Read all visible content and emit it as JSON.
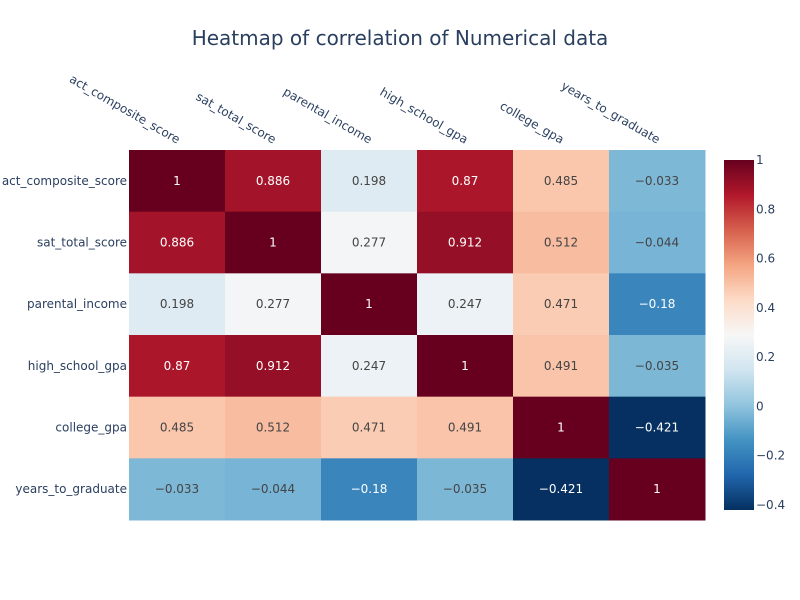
{
  "chart_data": {
    "type": "heatmap",
    "title": "Heatmap of correlation of Numerical data",
    "x_categories": [
      "act_composite_score",
      "sat_total_score",
      "parental_income",
      "high_school_gpa",
      "college_gpa",
      "years_to_graduate"
    ],
    "y_categories": [
      "act_composite_score",
      "sat_total_score",
      "parental_income",
      "high_school_gpa",
      "college_gpa",
      "years_to_graduate"
    ],
    "values": [
      [
        1,
        0.886,
        0.198,
        0.87,
        0.485,
        -0.033
      ],
      [
        0.886,
        1,
        0.277,
        0.912,
        0.512,
        -0.044
      ],
      [
        0.198,
        0.277,
        1,
        0.247,
        0.471,
        -0.18
      ],
      [
        0.87,
        0.912,
        0.247,
        1,
        0.491,
        -0.035
      ],
      [
        0.485,
        0.512,
        0.471,
        0.491,
        1,
        -0.421
      ],
      [
        -0.033,
        -0.044,
        -0.18,
        -0.035,
        -0.421,
        1
      ]
    ],
    "cell_labels": [
      [
        "1",
        "0.886",
        "0.198",
        "0.87",
        "0.485",
        "−0.033"
      ],
      [
        "0.886",
        "1",
        "0.277",
        "0.912",
        "0.512",
        "−0.044"
      ],
      [
        "0.198",
        "0.277",
        "1",
        "0.247",
        "0.471",
        "−0.18"
      ],
      [
        "0.87",
        "0.912",
        "0.247",
        "1",
        "0.491",
        "−0.035"
      ],
      [
        "0.485",
        "0.512",
        "0.471",
        "0.491",
        "1",
        "−0.421"
      ],
      [
        "−0.033",
        "−0.044",
        "−0.18",
        "−0.035",
        "−0.421",
        "1"
      ]
    ],
    "x_axis_side": "top",
    "colorscale": "RdBu",
    "zmin": -0.421,
    "zmax": 1,
    "colorbar": {
      "tick_values": [
        1,
        0.8,
        0.6,
        0.4,
        0.2,
        0,
        -0.2,
        -0.4
      ],
      "tick_labels": [
        "1",
        "0.8",
        "0.6",
        "0.4",
        "0.2",
        "0",
        "−0.2",
        "−0.4"
      ]
    },
    "colorscale_stops": [
      [
        0,
        "#053061"
      ],
      [
        0.1,
        "#2166ac"
      ],
      [
        0.2,
        "#4393c3"
      ],
      [
        0.3,
        "#92c5de"
      ],
      [
        0.4,
        "#d1e5f0"
      ],
      [
        0.5,
        "#f7f7f7"
      ],
      [
        0.6,
        "#fddbc7"
      ],
      [
        0.7,
        "#f4a582"
      ],
      [
        0.8,
        "#d6604d"
      ],
      [
        0.9,
        "#b2182b"
      ],
      [
        1,
        "#67001f"
      ]
    ]
  }
}
